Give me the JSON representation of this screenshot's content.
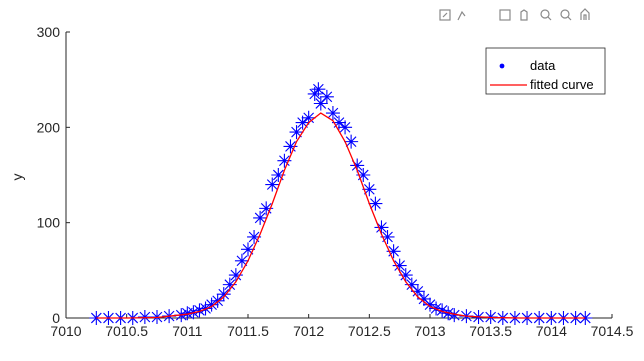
{
  "chart_data": {
    "type": "scatter",
    "title": "",
    "xlabel": "",
    "ylabel": "y",
    "xlim": [
      7010,
      7014.5
    ],
    "ylim": [
      0,
      300
    ],
    "xticks": [
      7010,
      7010.5,
      7011,
      7011.5,
      7012,
      7012.5,
      7013,
      7013.5,
      7014,
      7014.5
    ],
    "xtick_labels": [
      "7010",
      "7010.5",
      "7011",
      "7011.5",
      "7012",
      "7012.5",
      "7013",
      "7013.5",
      "7014",
      "7014.5"
    ],
    "yticks": [
      0,
      100,
      200,
      300
    ],
    "ytick_labels": [
      "0",
      "100",
      "200",
      "300"
    ],
    "grid": false,
    "legend_position": "top-right",
    "series": [
      {
        "name": "data",
        "kind": "scatter",
        "marker": "asterisk",
        "color": "#0000ff",
        "x": [
          7010.25,
          7010.35,
          7010.45,
          7010.55,
          7010.65,
          7010.75,
          7010.85,
          7010.95,
          7011.0,
          7011.05,
          7011.1,
          7011.15,
          7011.2,
          7011.25,
          7011.3,
          7011.35,
          7011.4,
          7011.45,
          7011.5,
          7011.55,
          7011.6,
          7011.65,
          7011.7,
          7011.75,
          7011.8,
          7011.85,
          7011.9,
          7011.95,
          7012.0,
          7012.05,
          7012.08,
          7012.1,
          7012.15,
          7012.2,
          7012.25,
          7012.3,
          7012.35,
          7012.4,
          7012.45,
          7012.5,
          7012.55,
          7012.6,
          7012.65,
          7012.7,
          7012.75,
          7012.8,
          7012.85,
          7012.9,
          7012.95,
          7013.0,
          7013.05,
          7013.1,
          7013.15,
          7013.2,
          7013.3,
          7013.4,
          7013.5,
          7013.6,
          7013.7,
          7013.8,
          7013.9,
          7014.0,
          7014.1,
          7014.2,
          7014.28
        ],
        "y": [
          0,
          0,
          0,
          0,
          1,
          1,
          2,
          3,
          5,
          6,
          8,
          10,
          14,
          18,
          25,
          35,
          45,
          60,
          72,
          85,
          105,
          115,
          140,
          150,
          165,
          180,
          195,
          205,
          210,
          235,
          240,
          225,
          232,
          215,
          205,
          200,
          185,
          160,
          150,
          135,
          120,
          95,
          85,
          70,
          55,
          45,
          35,
          28,
          20,
          14,
          10,
          8,
          5,
          3,
          2,
          1,
          1,
          0,
          0,
          0,
          0,
          0,
          0,
          0,
          0
        ]
      },
      {
        "name": "fitted curve",
        "kind": "line",
        "color": "#ff0000",
        "x": [
          7010.25,
          7010.5,
          7010.75,
          7011.0,
          7011.1,
          7011.2,
          7011.3,
          7011.4,
          7011.5,
          7011.6,
          7011.7,
          7011.8,
          7011.9,
          7012.0,
          7012.1,
          7012.2,
          7012.3,
          7012.4,
          7012.5,
          7012.6,
          7012.7,
          7012.8,
          7012.9,
          7013.0,
          7013.1,
          7013.2,
          7013.3,
          7013.5,
          7013.75,
          7014.0,
          7014.28
        ],
        "y": [
          0,
          0,
          0.5,
          4,
          7,
          12,
          22,
          38,
          60,
          88,
          120,
          155,
          185,
          205,
          215,
          207,
          185,
          155,
          120,
          88,
          60,
          38,
          22,
          12,
          7,
          4,
          2,
          0.5,
          0,
          0,
          0
        ]
      }
    ]
  }
}
